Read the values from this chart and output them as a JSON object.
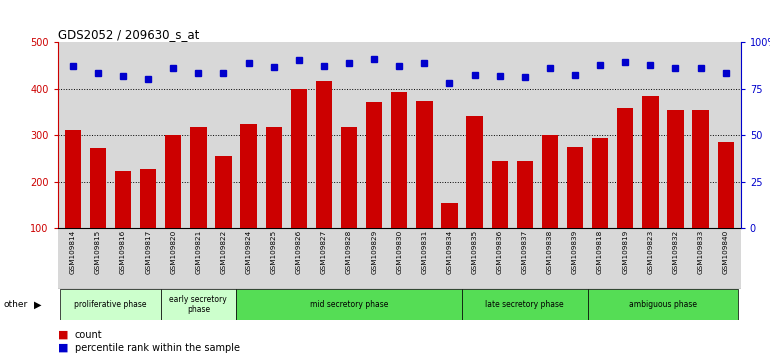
{
  "title": "GDS2052 / 209630_s_at",
  "samples": [
    "GSM109814",
    "GSM109815",
    "GSM109816",
    "GSM109817",
    "GSM109820",
    "GSM109821",
    "GSM109822",
    "GSM109824",
    "GSM109825",
    "GSM109826",
    "GSM109827",
    "GSM109828",
    "GSM109829",
    "GSM109830",
    "GSM109831",
    "GSM109834",
    "GSM109835",
    "GSM109836",
    "GSM109837",
    "GSM109838",
    "GSM109839",
    "GSM109818",
    "GSM109819",
    "GSM109823",
    "GSM109832",
    "GSM109833",
    "GSM109840"
  ],
  "counts": [
    312,
    272,
    224,
    228,
    300,
    318,
    256,
    325,
    318,
    400,
    417,
    318,
    372,
    393,
    375,
    155,
    342,
    244,
    244,
    300,
    275,
    295,
    358,
    385,
    355,
    355,
    285
  ],
  "percentiles_raw": [
    450,
    435,
    428,
    422,
    445,
    435,
    435,
    455,
    448,
    462,
    450,
    455,
    465,
    450,
    455,
    412,
    430,
    428,
    425,
    445,
    430,
    452,
    458,
    452,
    445,
    445,
    435
  ],
  "ylim_left": [
    100,
    500
  ],
  "ylim_right": [
    0,
    100
  ],
  "yticks_left": [
    100,
    200,
    300,
    400,
    500
  ],
  "yticks_right": [
    0,
    25,
    50,
    75,
    100
  ],
  "ytick_labels_right": [
    "0",
    "25",
    "50",
    "75",
    "100%"
  ],
  "bar_color": "#cc0000",
  "dot_color": "#0000cc",
  "bg_color": "#d8d8d8",
  "phases": [
    {
      "label": "proliferative phase",
      "start": 0,
      "end": 4,
      "color": "#ccffcc"
    },
    {
      "label": "early secretory\nphase",
      "start": 4,
      "end": 7,
      "color": "#ccffcc"
    },
    {
      "label": "mid secretory phase",
      "start": 7,
      "end": 16,
      "color": "#55dd55"
    },
    {
      "label": "late secretory phase",
      "start": 16,
      "end": 21,
      "color": "#55dd55"
    },
    {
      "label": "ambiguous phase",
      "start": 21,
      "end": 27,
      "color": "#55dd55"
    }
  ]
}
